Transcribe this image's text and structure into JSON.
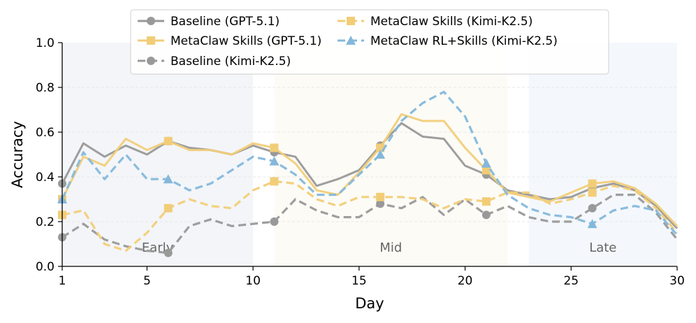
{
  "chart_data": {
    "type": "line",
    "xlabel": "Day",
    "ylabel": "Accuracy",
    "xlim": [
      1,
      30
    ],
    "ylim": [
      0,
      1.0
    ],
    "xticks": [
      1,
      5,
      10,
      15,
      20,
      25,
      30
    ],
    "yticks": [
      "0.0",
      "0.2",
      "0.4",
      "0.6",
      "0.8",
      "1.0"
    ],
    "grid": "horizontal dashed",
    "legend_placement": "top-center",
    "phases": [
      {
        "label": "Early",
        "start": 1,
        "end": 10,
        "color": "#f3f5f8"
      },
      {
        "label": "Mid",
        "start": 11,
        "end": 22,
        "color": "#fcfbf6"
      },
      {
        "label": "Late",
        "start": 23,
        "end": 30,
        "color": "#f4f8fc"
      }
    ],
    "x": [
      1,
      2,
      3,
      4,
      5,
      6,
      7,
      8,
      9,
      10,
      11,
      12,
      13,
      14,
      15,
      16,
      17,
      18,
      19,
      20,
      21,
      22,
      23,
      24,
      25,
      26,
      27,
      28,
      29,
      30
    ],
    "series": [
      {
        "name": "Baseline (GPT-5.1)",
        "color": "#999999",
        "dash": false,
        "marker": "circle",
        "values": [
          0.37,
          0.55,
          0.49,
          0.54,
          0.5,
          0.56,
          0.53,
          0.52,
          0.5,
          0.54,
          0.51,
          0.49,
          0.36,
          0.39,
          0.43,
          0.54,
          0.64,
          0.58,
          0.57,
          0.45,
          0.41,
          0.34,
          0.32,
          0.3,
          0.31,
          0.35,
          0.37,
          0.34,
          0.27,
          0.17
        ]
      },
      {
        "name": "MetaClaw Skills (GPT-5.1)",
        "color": "#f2cd78",
        "dash": false,
        "marker": "square",
        "values": [
          0.3,
          0.49,
          0.45,
          0.57,
          0.52,
          0.56,
          0.52,
          0.52,
          0.5,
          0.55,
          0.53,
          0.46,
          0.34,
          0.32,
          0.42,
          0.53,
          0.68,
          0.65,
          0.65,
          0.53,
          0.43,
          0.33,
          0.31,
          0.29,
          0.33,
          0.37,
          0.38,
          0.35,
          0.28,
          0.18
        ]
      },
      {
        "name": "Baseline (Kimi-K2.5)",
        "color": "#999999",
        "dash": true,
        "marker": "circle",
        "values": [
          0.13,
          0.19,
          0.12,
          0.09,
          0.07,
          0.06,
          0.18,
          0.21,
          0.18,
          0.19,
          0.2,
          0.3,
          0.25,
          0.22,
          0.22,
          0.28,
          0.26,
          0.31,
          0.23,
          0.3,
          0.23,
          0.27,
          0.22,
          0.2,
          0.2,
          0.26,
          0.32,
          0.32,
          0.24,
          0.12
        ]
      },
      {
        "name": "MetaClaw Skills (Kimi-K2.5)",
        "color": "#f2cd78",
        "dash": true,
        "marker": "square",
        "values": [
          0.23,
          0.25,
          0.1,
          0.07,
          0.15,
          0.26,
          0.3,
          0.27,
          0.26,
          0.34,
          0.38,
          0.37,
          0.3,
          0.27,
          0.31,
          0.31,
          0.31,
          0.3,
          0.26,
          0.3,
          0.29,
          0.33,
          0.33,
          0.28,
          0.3,
          0.33,
          0.36,
          0.34,
          0.26,
          0.15
        ]
      },
      {
        "name": "MetaClaw RL+Skills (Kimi-K2.5)",
        "color": "#84b8db",
        "dash": true,
        "marker": "triangle",
        "values": [
          0.3,
          0.51,
          0.39,
          0.5,
          0.39,
          0.39,
          0.34,
          0.37,
          0.43,
          0.49,
          0.47,
          0.41,
          0.32,
          0.32,
          0.41,
          0.5,
          0.65,
          0.73,
          0.78,
          0.67,
          0.46,
          0.32,
          0.26,
          0.23,
          0.22,
          0.19,
          0.25,
          0.27,
          0.25,
          0.14
        ]
      }
    ]
  }
}
